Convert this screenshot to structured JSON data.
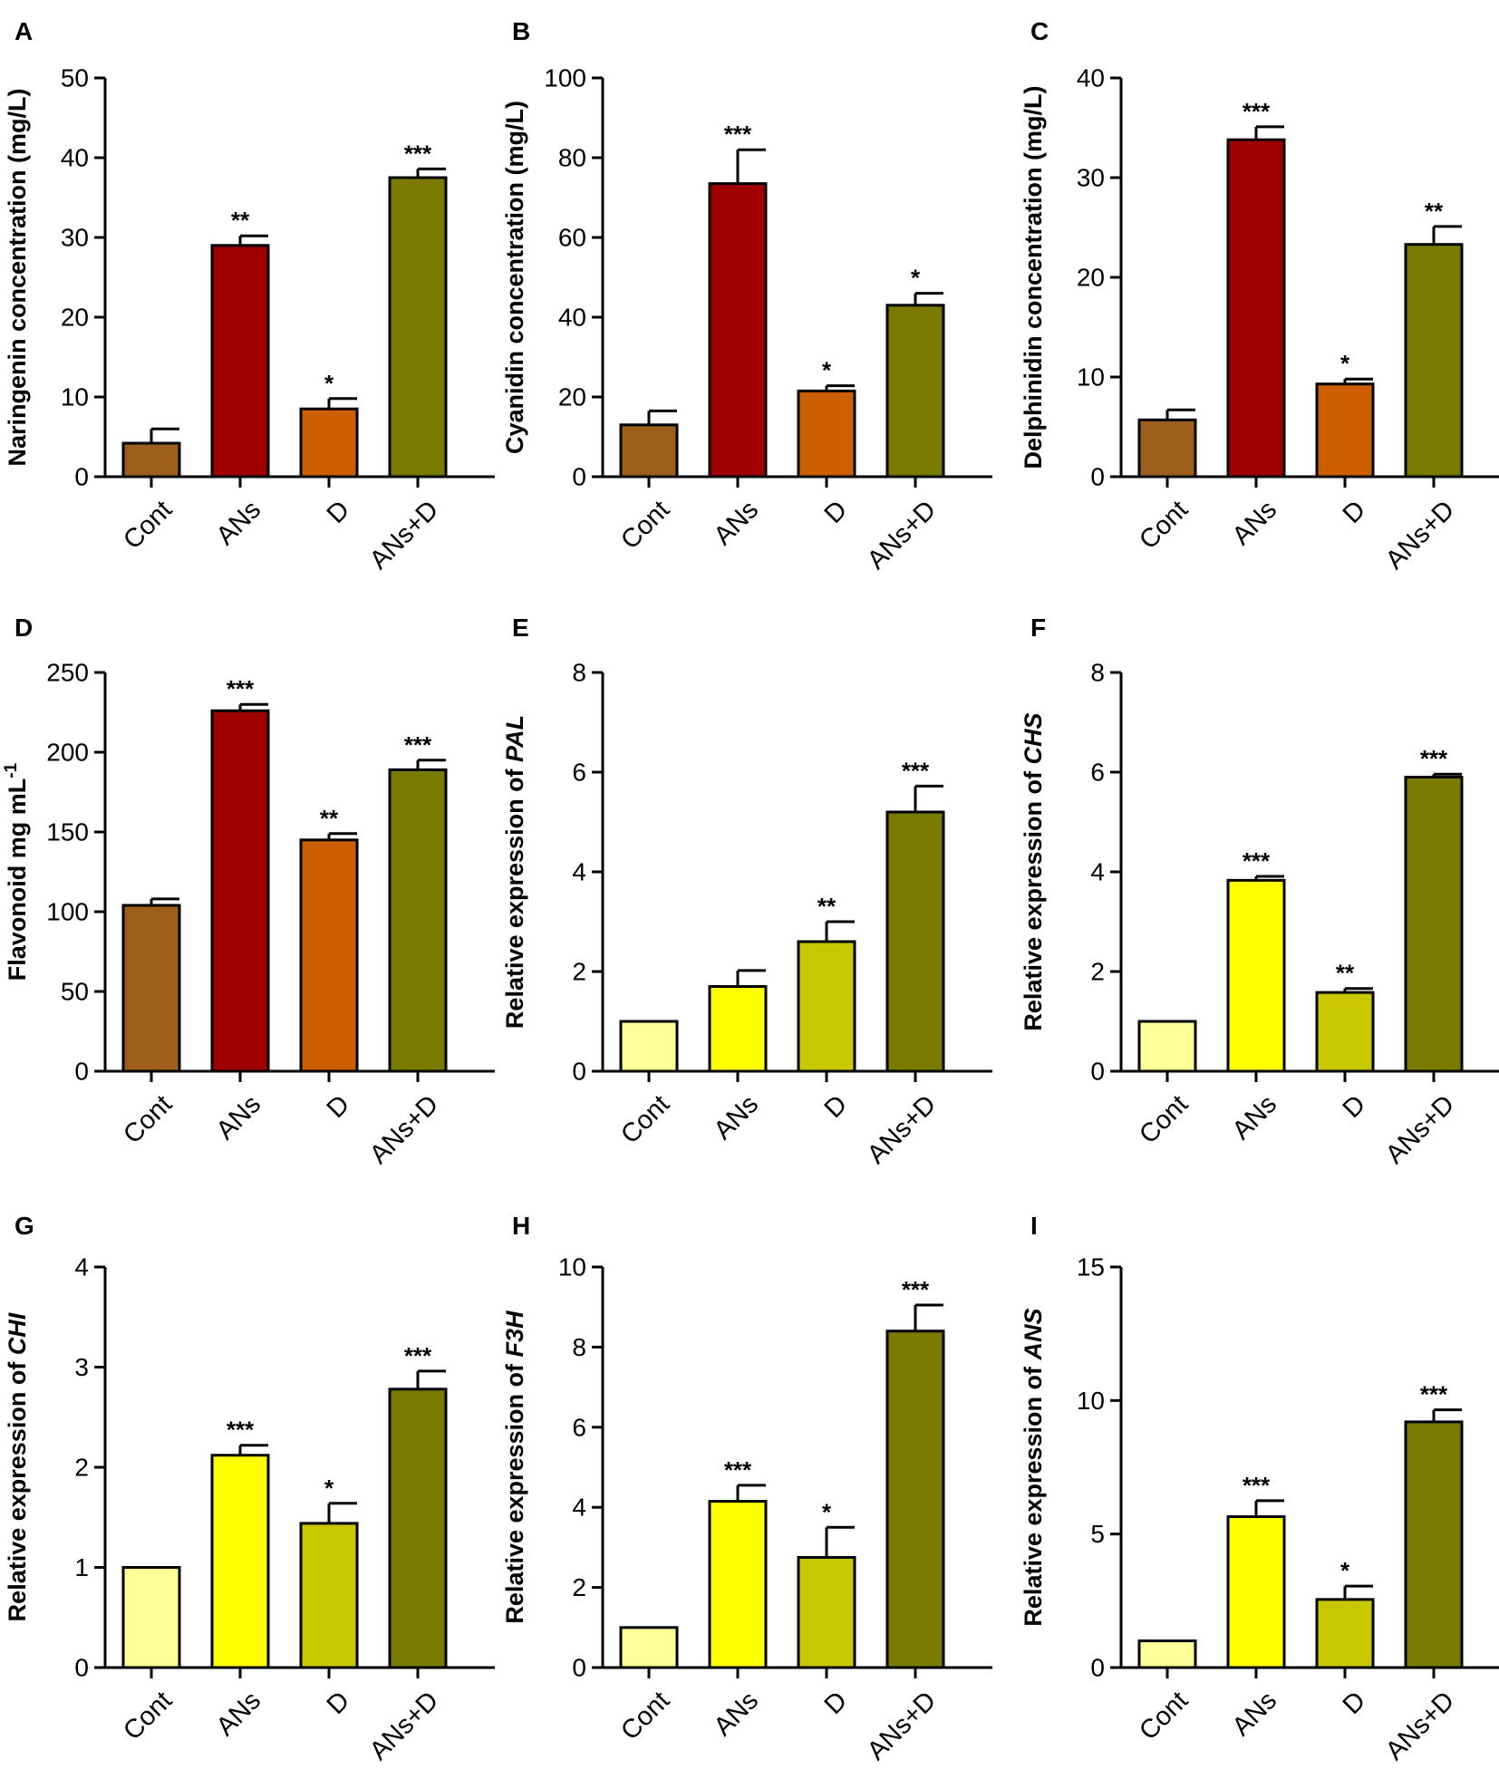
{
  "chart_data": [
    {
      "panel": "A",
      "type": "bar",
      "categories": [
        "Cont",
        "ANs",
        "D",
        "ANs+D"
      ],
      "values": [
        4.2,
        29.0,
        8.5,
        37.5
      ],
      "errors": [
        1.8,
        1.2,
        1.3,
        1.1
      ],
      "significance": [
        "",
        "**",
        "*",
        "***"
      ],
      "colors": [
        "#9c5f1c",
        "#a00000",
        "#cc5f00",
        "#7a7a00"
      ],
      "ylabel": "Naringenin concentration (mg/L)",
      "ylabel_italic": "",
      "ylim": [
        0,
        50
      ],
      "yticks": [
        0,
        10,
        20,
        30,
        40,
        50
      ]
    },
    {
      "panel": "B",
      "type": "bar",
      "categories": [
        "Cont",
        "ANs",
        "D",
        "ANs+D"
      ],
      "values": [
        13.0,
        73.5,
        21.5,
        43.0
      ],
      "errors": [
        3.5,
        8.5,
        1.3,
        3.0
      ],
      "significance": [
        "",
        "***",
        "*",
        "*"
      ],
      "colors": [
        "#9c5f1c",
        "#a00000",
        "#cc5f00",
        "#7a7a00"
      ],
      "ylabel": "Cyanidin concentration (mg/L)",
      "ylabel_italic": "",
      "ylim": [
        0,
        100
      ],
      "yticks": [
        0,
        20,
        40,
        60,
        80,
        100
      ]
    },
    {
      "panel": "C",
      "type": "bar",
      "categories": [
        "Cont",
        "ANs",
        "D",
        "ANs+D"
      ],
      "values": [
        5.7,
        33.8,
        9.3,
        23.3
      ],
      "errors": [
        1.0,
        1.3,
        0.5,
        1.8
      ],
      "significance": [
        "",
        "***",
        "*",
        "**"
      ],
      "colors": [
        "#9c5f1c",
        "#a00000",
        "#cc5f00",
        "#7a7a00"
      ],
      "ylabel": "Delphinidin concentration (mg/L)",
      "ylabel_italic": "",
      "ylim": [
        0,
        40
      ],
      "yticks": [
        0,
        10,
        20,
        30,
        40
      ]
    },
    {
      "panel": "D",
      "type": "bar",
      "categories": [
        "Cont",
        "ANs",
        "D",
        "ANs+D"
      ],
      "values": [
        104,
        226,
        145,
        189
      ],
      "errors": [
        4,
        4,
        4,
        6
      ],
      "significance": [
        "",
        "***",
        "**",
        "***"
      ],
      "colors": [
        "#9c5f1c",
        "#a00000",
        "#cc5f00",
        "#7a7a00"
      ],
      "ylabel": "Flavonoid mg mL",
      "ylabel_italic": "",
      "ylabel_sup": "-1",
      "ylim": [
        0,
        250
      ],
      "yticks": [
        0,
        50,
        100,
        150,
        200,
        250
      ]
    },
    {
      "panel": "E",
      "type": "bar",
      "categories": [
        "Cont",
        "ANs",
        "D",
        "ANs+D"
      ],
      "values": [
        1.0,
        1.7,
        2.6,
        5.2
      ],
      "errors": [
        0,
        0.32,
        0.4,
        0.52
      ],
      "significance": [
        "",
        "",
        "**",
        "***"
      ],
      "colors": [
        "#ffff99",
        "#ffff00",
        "#c8c800",
        "#7a7a00"
      ],
      "ylabel": "Relative expression of ",
      "ylabel_italic": "PAL",
      "ylim": [
        0,
        8
      ],
      "yticks": [
        0,
        2,
        4,
        6,
        8
      ]
    },
    {
      "panel": "F",
      "type": "bar",
      "categories": [
        "Cont",
        "ANs",
        "D",
        "ANs+D"
      ],
      "values": [
        1.0,
        3.83,
        1.58,
        5.9
      ],
      "errors": [
        0,
        0.08,
        0.08,
        0.06
      ],
      "significance": [
        "",
        "***",
        "**",
        "***"
      ],
      "colors": [
        "#ffff99",
        "#ffff00",
        "#c8c800",
        "#7a7a00"
      ],
      "ylabel": "Relative expression of ",
      "ylabel_italic": "CHS",
      "ylim": [
        0,
        8
      ],
      "yticks": [
        0,
        2,
        4,
        6,
        8
      ]
    },
    {
      "panel": "G",
      "type": "bar",
      "categories": [
        "Cont",
        "ANs",
        "D",
        "ANs+D"
      ],
      "values": [
        1.0,
        2.12,
        1.44,
        2.78
      ],
      "errors": [
        0,
        0.1,
        0.2,
        0.18
      ],
      "significance": [
        "",
        "***",
        "*",
        "***"
      ],
      "colors": [
        "#ffff99",
        "#ffff00",
        "#c8c800",
        "#7a7a00"
      ],
      "ylabel": "Relative expression of ",
      "ylabel_italic": "CHI",
      "ylim": [
        0,
        4
      ],
      "yticks": [
        0,
        1,
        2,
        3,
        4
      ]
    },
    {
      "panel": "H",
      "type": "bar",
      "categories": [
        "Cont",
        "ANs",
        "D",
        "ANs+D"
      ],
      "values": [
        1.0,
        4.15,
        2.75,
        8.4
      ],
      "errors": [
        0,
        0.4,
        0.75,
        0.65
      ],
      "significance": [
        "",
        "***",
        "*",
        "***"
      ],
      "colors": [
        "#ffff99",
        "#ffff00",
        "#c8c800",
        "#7a7a00"
      ],
      "ylabel": "Relative expression of ",
      "ylabel_italic": "F3H",
      "ylim": [
        0,
        10
      ],
      "yticks": [
        0,
        2,
        4,
        6,
        8,
        10
      ]
    },
    {
      "panel": "I",
      "type": "bar",
      "categories": [
        "Cont",
        "ANs",
        "D",
        "ANs+D"
      ],
      "values": [
        1.0,
        5.65,
        2.55,
        9.2
      ],
      "errors": [
        0,
        0.6,
        0.5,
        0.45
      ],
      "significance": [
        "",
        "***",
        "*",
        "***"
      ],
      "colors": [
        "#ffff99",
        "#ffff00",
        "#c8c800",
        "#7a7a00"
      ],
      "ylabel": "Relative expression of ",
      "ylabel_italic": "ANS",
      "ylim": [
        0,
        15
      ],
      "yticks": [
        0,
        5,
        10,
        15
      ]
    }
  ]
}
